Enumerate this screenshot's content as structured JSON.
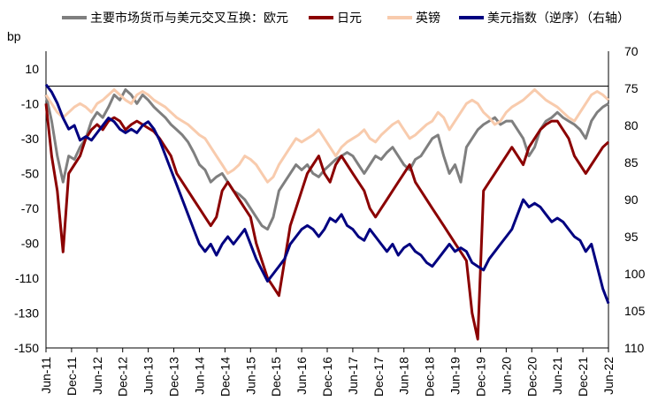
{
  "chart_data": {
    "type": "line",
    "ylabel": "bp",
    "legend_position": "top",
    "grid": false,
    "ylim": [
      -150,
      20
    ],
    "y_ticks": [
      10,
      -10,
      -30,
      -50,
      -70,
      -90,
      -110,
      -130,
      -150
    ],
    "y2lim": [
      110,
      70
    ],
    "y2_reversed": true,
    "y2_ticks": [
      70,
      75,
      80,
      85,
      90,
      95,
      100,
      105,
      110
    ],
    "x_ticks": [
      "Jun-11",
      "Dec-11",
      "Jun-12",
      "Dec-12",
      "Jun-13",
      "Dec-13",
      "Jun-14",
      "Dec-14",
      "Jun-15",
      "Dec-15",
      "Jun-16",
      "Dec-16",
      "Jun-17",
      "Dec-17",
      "Jun-18",
      "Dec-18",
      "Jun-19",
      "Dec-19",
      "Jun-20",
      "Dec-20",
      "Jun-21",
      "Dec-21",
      "Jun-22"
    ],
    "series": [
      {
        "name": "主要市场货币与美元交叉互换：欧元",
        "axis": "left",
        "color": "#7f7f7f",
        "values": [
          -5,
          -20,
          -40,
          -55,
          -40,
          -42,
          -35,
          -30,
          -20,
          -15,
          -18,
          -12,
          -5,
          -8,
          -2,
          -5,
          -10,
          -5,
          -8,
          -12,
          -15,
          -18,
          -22,
          -25,
          -28,
          -32,
          -38,
          -45,
          -48,
          -55,
          -52,
          -50,
          -55,
          -60,
          -62,
          -65,
          -70,
          -75,
          -80,
          -82,
          -75,
          -60,
          -55,
          -50,
          -45,
          -48,
          -45,
          -50,
          -52,
          -48,
          -45,
          -42,
          -40,
          -38,
          -40,
          -45,
          -50,
          -45,
          -40,
          -42,
          -38,
          -35,
          -40,
          -45,
          -48,
          -42,
          -40,
          -35,
          -30,
          -28,
          -40,
          -50,
          -45,
          -55,
          -35,
          -30,
          -25,
          -22,
          -20,
          -18,
          -22,
          -20,
          -20,
          -25,
          -30,
          -40,
          -35,
          -25,
          -20,
          -18,
          -15,
          -18,
          -20,
          -22,
          -25,
          -30,
          -20,
          -15,
          -12,
          -10
        ]
      },
      {
        "name": "日元",
        "axis": "left",
        "color": "#8b0000",
        "values": [
          -10,
          -40,
          -60,
          -95,
          -50,
          -45,
          -40,
          -30,
          -25,
          -22,
          -25,
          -20,
          -18,
          -20,
          -25,
          -22,
          -20,
          -22,
          -24,
          -26,
          -30,
          -35,
          -40,
          -50,
          -55,
          -60,
          -65,
          -70,
          -75,
          -80,
          -75,
          -60,
          -55,
          -60,
          -65,
          -70,
          -75,
          -90,
          -100,
          -110,
          -115,
          -120,
          -100,
          -80,
          -70,
          -60,
          -50,
          -45,
          -40,
          -50,
          -55,
          -45,
          -40,
          -45,
          -50,
          -55,
          -60,
          -70,
          -75,
          -70,
          -65,
          -60,
          -55,
          -50,
          -45,
          -55,
          -60,
          -65,
          -70,
          -75,
          -80,
          -85,
          -90,
          -95,
          -100,
          -130,
          -145,
          -60,
          -55,
          -50,
          -45,
          -40,
          -35,
          -40,
          -45,
          -35,
          -30,
          -25,
          -22,
          -20,
          -20,
          -25,
          -30,
          -40,
          -45,
          -50,
          -45,
          -40,
          -35,
          -32
        ]
      },
      {
        "name": "英镑",
        "axis": "left",
        "color": "#f8cbad",
        "values": [
          -5,
          -10,
          -15,
          -18,
          -15,
          -12,
          -10,
          -12,
          -15,
          -10,
          -8,
          -5,
          -2,
          -5,
          -8,
          -10,
          -5,
          -3,
          -5,
          -8,
          -10,
          -12,
          -15,
          -18,
          -20,
          -22,
          -25,
          -28,
          -30,
          -35,
          -40,
          -45,
          -50,
          -48,
          -45,
          -40,
          -42,
          -45,
          -50,
          -55,
          -52,
          -45,
          -40,
          -35,
          -30,
          -32,
          -30,
          -28,
          -25,
          -30,
          -35,
          -40,
          -35,
          -32,
          -30,
          -28,
          -25,
          -30,
          -32,
          -28,
          -25,
          -22,
          -20,
          -25,
          -30,
          -28,
          -25,
          -22,
          -20,
          -15,
          -18,
          -25,
          -20,
          -15,
          -10,
          -8,
          -10,
          -15,
          -18,
          -22,
          -20,
          -15,
          -12,
          -10,
          -8,
          -5,
          -2,
          -5,
          -8,
          -10,
          -12,
          -15,
          -18,
          -20,
          -15,
          -10,
          -5,
          -3,
          -5,
          -8
        ]
      },
      {
        "name": "美元指数（逆序）（右轴）",
        "axis": "right",
        "color": "#000080",
        "values": [
          74.5,
          75.5,
          77,
          79,
          80.5,
          80,
          82,
          81.5,
          82,
          81,
          80,
          79,
          79.5,
          80.5,
          81,
          80.5,
          81,
          80,
          79.5,
          80.5,
          82,
          84,
          86,
          88,
          90,
          92,
          94,
          96,
          97,
          96,
          97.5,
          96,
          95,
          96,
          95,
          94,
          96,
          98,
          99.5,
          101,
          100,
          99,
          98,
          96,
          95,
          94,
          93.5,
          94,
          95,
          94,
          92.5,
          93,
          92,
          93.5,
          94,
          95,
          95.5,
          94,
          95,
          96,
          97,
          96,
          97.5,
          96.5,
          96,
          97,
          97.5,
          98.5,
          99,
          98,
          97,
          96,
          97,
          96.5,
          97,
          98.5,
          99,
          99.5,
          98,
          97,
          96,
          95,
          94,
          92,
          90,
          91,
          90.5,
          91,
          92,
          93,
          92.5,
          93,
          94,
          95,
          95.5,
          97,
          96,
          99,
          102,
          104
        ]
      }
    ]
  }
}
